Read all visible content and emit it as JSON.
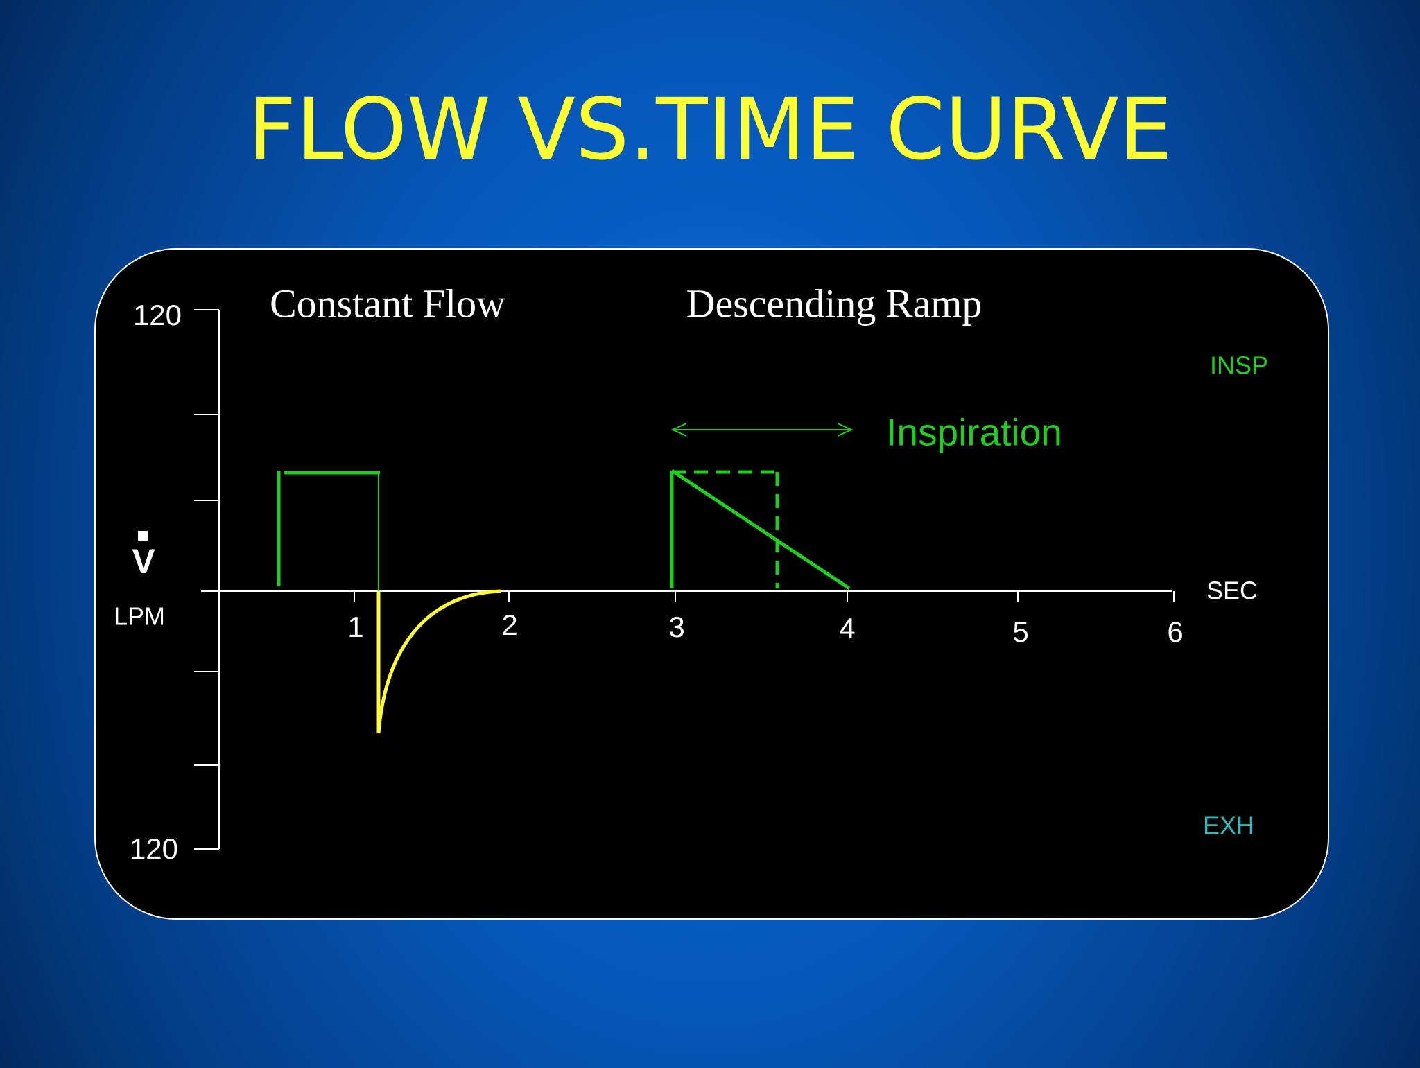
{
  "title": "FLOW VS.TIME CURVE",
  "diagram": {
    "left_label": "Constant Flow",
    "right_label": "Descending Ramp",
    "y_axis": {
      "top": "120",
      "bottom": "120",
      "symbol": "V",
      "unit": "LPM"
    },
    "x_axis": {
      "unit": "SEC",
      "ticks": [
        "1",
        "2",
        "3",
        "4",
        "5",
        "6"
      ]
    },
    "insp": "INSP",
    "exh": "EXH",
    "inspiration": "Inspiration"
  }
}
